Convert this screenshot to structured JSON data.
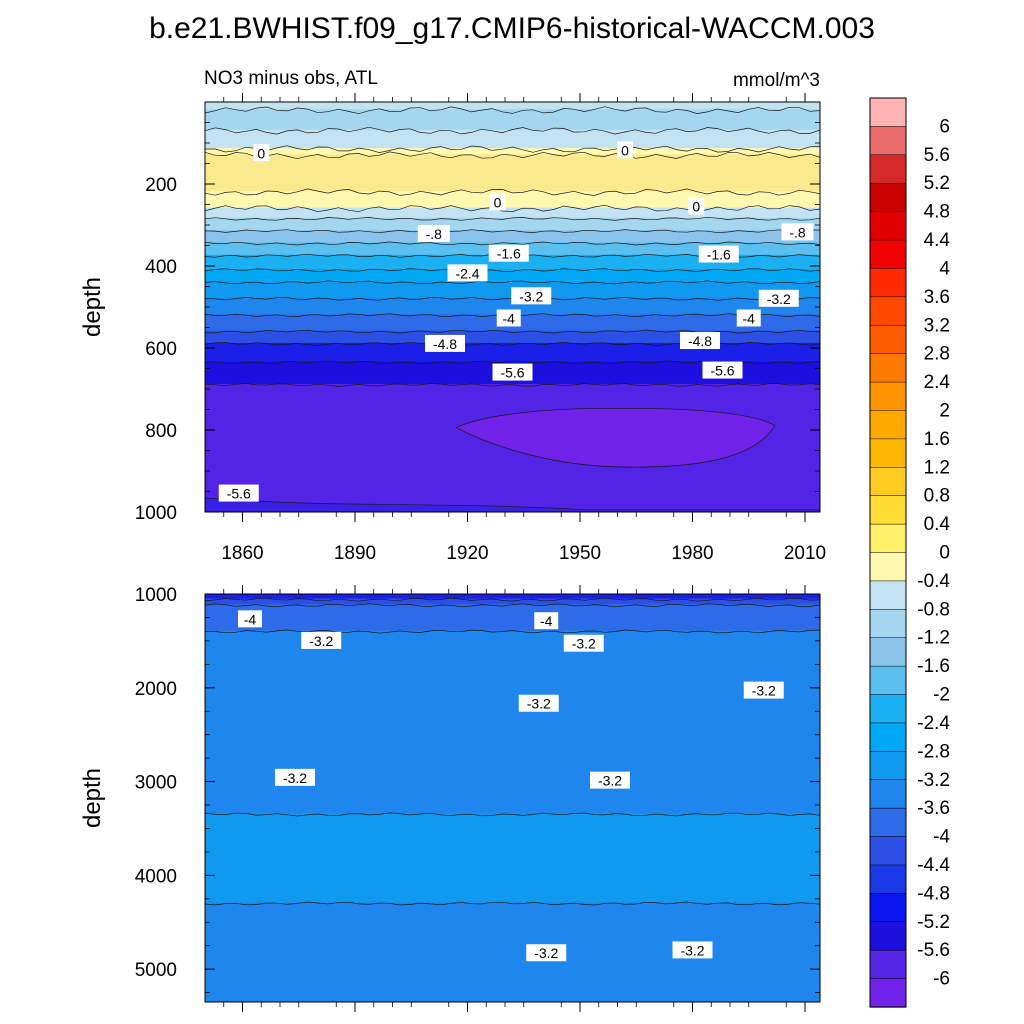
{
  "title": "b.e21.BWHIST.f09_g17.CMIP6-historical-WACCM.003",
  "chart_data": {
    "type": "heatmap",
    "subtitle_left": "NO3 minus obs, ATL",
    "subtitle_right": "mmol/m^3",
    "x_ticks": [
      "1860",
      "1890",
      "1920",
      "1950",
      "1980",
      "2010"
    ],
    "x_tick_values": [
      1860,
      1890,
      1920,
      1950,
      1980,
      2010
    ],
    "xlim": [
      1850,
      2014
    ],
    "upper_panel": {
      "ylabel": "depth",
      "ylim": [
        0,
        1000
      ],
      "y_ticks": [
        "200",
        "400",
        "600",
        "800",
        "1000"
      ],
      "y_tick_values": [
        200,
        400,
        600,
        800,
        1000
      ],
      "bands": [
        {
          "top": 0,
          "bottom": 20,
          "color": "#c3e3f2"
        },
        {
          "top": 20,
          "bottom": 70,
          "color": "#a5d6f0"
        },
        {
          "top": 70,
          "bottom": 115,
          "color": "#c3e3f2"
        },
        {
          "top": 115,
          "bottom": 130,
          "color": "#fff9b0"
        },
        {
          "top": 130,
          "bottom": 220,
          "color": "#fbe98d"
        },
        {
          "top": 220,
          "bottom": 260,
          "color": "#fff9b0"
        },
        {
          "top": 260,
          "bottom": 285,
          "color": "#c3e3f2"
        },
        {
          "top": 285,
          "bottom": 315,
          "color": "#a5d6f0"
        },
        {
          "top": 315,
          "bottom": 345,
          "color": "#8ac4ec"
        },
        {
          "top": 345,
          "bottom": 375,
          "color": "#5bbff0"
        },
        {
          "top": 375,
          "bottom": 410,
          "color": "#1ab0f2"
        },
        {
          "top": 410,
          "bottom": 440,
          "color": "#00a8f5"
        },
        {
          "top": 440,
          "bottom": 480,
          "color": "#0f9aef"
        },
        {
          "top": 480,
          "bottom": 520,
          "color": "#1e86ec"
        },
        {
          "top": 520,
          "bottom": 560,
          "color": "#2e6be8"
        },
        {
          "top": 560,
          "bottom": 590,
          "color": "#2c4fe6"
        },
        {
          "top": 590,
          "bottom": 635,
          "color": "#1a20e8"
        },
        {
          "top": 635,
          "bottom": 690,
          "color": "#1c10e0"
        },
        {
          "top": 690,
          "bottom": 1000,
          "color": "#5224e6"
        }
      ],
      "blob": {
        "color": "#7022e8",
        "level": -6,
        "x_range": [
          1917,
          2002
        ],
        "depth_range": [
          755,
          890
        ]
      },
      "bottom_patch": {
        "color": "#3a1fe5",
        "depth": 980
      },
      "contour_labels": [
        {
          "text": "0",
          "x": 1865,
          "y": 125
        },
        {
          "text": "0",
          "x": 1962,
          "y": 118
        },
        {
          "text": "0",
          "x": 1928,
          "y": 245
        },
        {
          "text": "0",
          "x": 1981,
          "y": 255
        },
        {
          "text": "-.8",
          "x": 1911,
          "y": 322
        },
        {
          "text": "-.8",
          "x": 2008,
          "y": 318
        },
        {
          "text": "-1.6",
          "x": 1931,
          "y": 370
        },
        {
          "text": "-1.6",
          "x": 1987,
          "y": 372
        },
        {
          "text": "-2.4",
          "x": 1920,
          "y": 418
        },
        {
          "text": "-3.2",
          "x": 1937,
          "y": 474
        },
        {
          "text": "-3.2",
          "x": 2003,
          "y": 480
        },
        {
          "text": "-4",
          "x": 1931,
          "y": 528
        },
        {
          "text": "-4",
          "x": 1995,
          "y": 528
        },
        {
          "text": "-4.8",
          "x": 1914,
          "y": 590
        },
        {
          "text": "-4.8",
          "x": 1982,
          "y": 583
        },
        {
          "text": "-5.6",
          "x": 1932,
          "y": 660
        },
        {
          "text": "-5.6",
          "x": 1988,
          "y": 655
        },
        {
          "text": "-5.6",
          "x": 1859,
          "y": 955
        }
      ]
    },
    "lower_panel": {
      "ylabel": "depth",
      "ylim": [
        1000,
        5350
      ],
      "y_ticks": [
        "1000",
        "2000",
        "3000",
        "4000",
        "5000"
      ],
      "y_tick_values": [
        1000,
        2000,
        3000,
        4000,
        5000
      ],
      "bands": [
        {
          "top": 1000,
          "bottom": 1060,
          "color": "#1a20e8"
        },
        {
          "top": 1060,
          "bottom": 1120,
          "color": "#2c4fe6"
        },
        {
          "top": 1120,
          "bottom": 1400,
          "color": "#2e6be8"
        },
        {
          "top": 1400,
          "bottom": 3350,
          "color": "#1e86ec"
        },
        {
          "top": 3350,
          "bottom": 4300,
          "color": "#0f9aef"
        },
        {
          "top": 4300,
          "bottom": 5350,
          "color": "#1e86ec"
        }
      ],
      "contour_labels": [
        {
          "text": "-4",
          "x": 1862,
          "y": 1270
        },
        {
          "text": "-4",
          "x": 1941,
          "y": 1290
        },
        {
          "text": "-3.2",
          "x": 1881,
          "y": 1500
        },
        {
          "text": "-3.2",
          "x": 1951,
          "y": 1530
        },
        {
          "text": "-3.2",
          "x": 1939,
          "y": 2170
        },
        {
          "text": "-3.2",
          "x": 1999,
          "y": 2030
        },
        {
          "text": "-3.2",
          "x": 1874,
          "y": 2960
        },
        {
          "text": "-3.2",
          "x": 1958,
          "y": 2990
        },
        {
          "text": "-3.2",
          "x": 1941,
          "y": 4830
        },
        {
          "text": "-3.2",
          "x": 1980,
          "y": 4800
        }
      ]
    },
    "colorbar": {
      "labels": [
        "6",
        "5.6",
        "5.2",
        "4.8",
        "4.4",
        "4",
        "3.6",
        "3.2",
        "2.8",
        "2.4",
        "2",
        "1.6",
        "1.2",
        "0.8",
        "0.4",
        "0",
        "-0.4",
        "-0.8",
        "-1.2",
        "-1.6",
        "-2",
        "-2.4",
        "-2.8",
        "-3.2",
        "-3.6",
        "-4",
        "-4.4",
        "-4.8",
        "-5.2",
        "-5.6",
        "-6"
      ],
      "colors": [
        "#ffb3b3",
        "#ea6b6b",
        "#d62a2a",
        "#c80000",
        "#e00000",
        "#f00000",
        "#ff2a00",
        "#ff4800",
        "#ff5c00",
        "#ff7a00",
        "#ff9400",
        "#ffa800",
        "#ffb800",
        "#ffcc22",
        "#ffdd33",
        "#ffee66",
        "#fff9b0",
        "#c3e3f2",
        "#a5d6f0",
        "#8ac4ec",
        "#5bbff0",
        "#1ab0f2",
        "#00a8f5",
        "#0f9aef",
        "#1e86ec",
        "#2e6be8",
        "#2c4fe6",
        "#1a3ae8",
        "#0b16f0",
        "#1c10e0",
        "#5224e6",
        "#7022e8"
      ]
    }
  }
}
